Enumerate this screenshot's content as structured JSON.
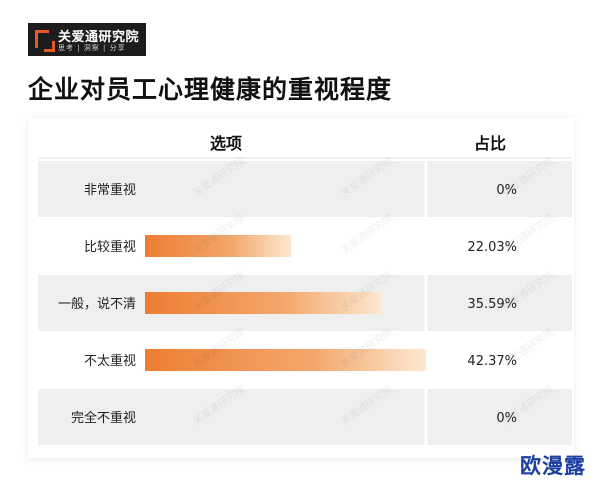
{
  "logo": {
    "name": "关爱通研究院",
    "slogan": "思考 | 洞察 | 分享"
  },
  "title": "企业对员工心理健康的重视程度",
  "table": {
    "col_option": "选项",
    "col_ratio": "占比"
  },
  "colors": {
    "bar_start": "#ee7d33",
    "bar_end": "#fde8d0",
    "row_band": "#efefef",
    "accent": "#e8582a"
  },
  "chart_data": {
    "type": "bar",
    "orientation": "horizontal",
    "categories": [
      "非常重视",
      "比较重视",
      "一般，说不清",
      "不太重视",
      "完全不重视"
    ],
    "values": [
      0,
      22.03,
      35.59,
      42.37,
      0
    ],
    "value_labels": [
      "0%",
      "22.03%",
      "35.59%",
      "42.37%",
      "0%"
    ],
    "unit": "%",
    "xlim": [
      0,
      42.37
    ],
    "grid": false,
    "legend": "none"
  },
  "watermark": "关爱通研究院",
  "corner_watermark": "欧漫露"
}
